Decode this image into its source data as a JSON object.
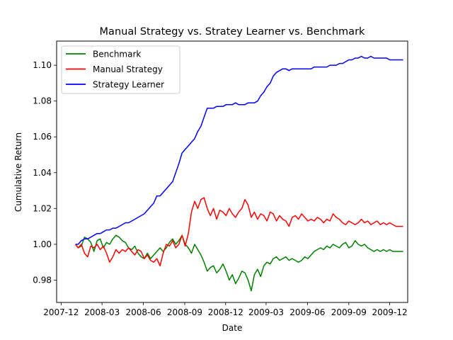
{
  "chart_data": {
    "type": "line",
    "title": "Manual Strategy vs. Stratey Learner vs. Benchmark",
    "xlabel": "Date",
    "ylabel": "Cumulative Return",
    "xlim": [
      "2007-11-21",
      "2010-01-10"
    ],
    "ylim": [
      0.9675,
      1.1135
    ],
    "x_ticks": [
      "2007-12",
      "2008-03",
      "2008-06",
      "2008-09",
      "2008-12",
      "2009-03",
      "2009-06",
      "2009-09",
      "2009-12"
    ],
    "x_tick_dates": [
      "2007-12-01",
      "2008-03-01",
      "2008-06-01",
      "2008-09-01",
      "2008-12-01",
      "2009-03-01",
      "2009-06-01",
      "2009-09-01",
      "2009-12-01"
    ],
    "y_ticks": [
      "0.98",
      "1.00",
      "1.02",
      "1.04",
      "1.06",
      "1.08",
      "1.10"
    ],
    "y_tick_values": [
      0.98,
      1.0,
      1.02,
      1.04,
      1.06,
      1.08,
      1.1
    ],
    "grid": false,
    "legend_position": "top-left",
    "series": [
      {
        "name": "Benchmark",
        "color": "#008000",
        "x": [
          "2008-01-02",
          "2008-01-08",
          "2008-01-15",
          "2008-01-22",
          "2008-01-29",
          "2008-02-05",
          "2008-02-12",
          "2008-02-19",
          "2008-02-26",
          "2008-03-04",
          "2008-03-11",
          "2008-03-18",
          "2008-03-25",
          "2008-04-01",
          "2008-04-08",
          "2008-04-15",
          "2008-04-22",
          "2008-04-29",
          "2008-05-06",
          "2008-05-13",
          "2008-05-20",
          "2008-05-27",
          "2008-06-03",
          "2008-06-10",
          "2008-06-17",
          "2008-06-24",
          "2008-07-01",
          "2008-07-08",
          "2008-07-15",
          "2008-07-22",
          "2008-07-29",
          "2008-08-05",
          "2008-08-12",
          "2008-08-19",
          "2008-08-26",
          "2008-09-02",
          "2008-09-09",
          "2008-09-16",
          "2008-09-23",
          "2008-09-30",
          "2008-10-07",
          "2008-10-14",
          "2008-10-21",
          "2008-10-28",
          "2008-11-04",
          "2008-11-11",
          "2008-11-18",
          "2008-11-25",
          "2008-12-02",
          "2008-12-09",
          "2008-12-16",
          "2008-12-23",
          "2008-12-30",
          "2009-01-06",
          "2009-01-13",
          "2009-01-20",
          "2009-01-27",
          "2009-02-03",
          "2009-02-10",
          "2009-02-17",
          "2009-02-24",
          "2009-03-03",
          "2009-03-10",
          "2009-03-17",
          "2009-03-24",
          "2009-03-31",
          "2009-04-07",
          "2009-04-14",
          "2009-04-21",
          "2009-04-28",
          "2009-05-05",
          "2009-05-12",
          "2009-05-19",
          "2009-05-26",
          "2009-06-02",
          "2009-06-09",
          "2009-06-16",
          "2009-06-23",
          "2009-06-30",
          "2009-07-07",
          "2009-07-14",
          "2009-07-21",
          "2009-07-28",
          "2009-08-04",
          "2009-08-11",
          "2009-08-18",
          "2009-08-25",
          "2009-09-01",
          "2009-09-08",
          "2009-09-15",
          "2009-09-22",
          "2009-09-29",
          "2009-10-06",
          "2009-10-13",
          "2009-10-20",
          "2009-10-27",
          "2009-11-03",
          "2009-11-10",
          "2009-11-17",
          "2009-11-24",
          "2009-12-01",
          "2009-12-08",
          "2009-12-15",
          "2009-12-22",
          "2009-12-31"
        ],
        "y": [
          1.0,
          0.998,
          0.999,
          1.004,
          1.003,
          1.001,
          0.996,
          1.002,
          1.003,
          0.998,
          1.001,
          1.0,
          1.003,
          1.005,
          1.004,
          1.002,
          1.001,
          0.998,
          0.997,
          0.999,
          0.995,
          0.993,
          0.992,
          0.995,
          0.992,
          0.994,
          0.996,
          0.998,
          0.996,
          0.998,
          1.001,
          1.003,
          1.0,
          1.002,
          1.005,
          1.0,
          0.998,
          0.995,
          1.0,
          0.997,
          0.994,
          0.99,
          0.985,
          0.987,
          0.988,
          0.984,
          0.986,
          0.989,
          0.985,
          0.98,
          0.983,
          0.978,
          0.981,
          0.985,
          0.984,
          0.98,
          0.974,
          0.983,
          0.986,
          0.982,
          0.988,
          0.99,
          0.989,
          0.992,
          0.993,
          0.991,
          0.992,
          0.993,
          0.991,
          0.992,
          0.991,
          0.99,
          0.991,
          0.993,
          0.992,
          0.994,
          0.996,
          0.997,
          0.998,
          0.997,
          0.999,
          0.998,
          1.0,
          0.999,
          0.998,
          1.0,
          1.001,
          0.998,
          0.999,
          1.002,
          1.0,
          0.999,
          1.0,
          0.998,
          0.997,
          0.996,
          0.997,
          0.996,
          0.997,
          0.996,
          0.997,
          0.996,
          0.996,
          0.996,
          0.996
        ]
      },
      {
        "name": "Manual Strategy",
        "color": "#ff0000",
        "x": [
          "2008-01-02",
          "2008-01-08",
          "2008-01-15",
          "2008-01-22",
          "2008-01-29",
          "2008-02-05",
          "2008-02-12",
          "2008-02-19",
          "2008-02-26",
          "2008-03-04",
          "2008-03-11",
          "2008-03-18",
          "2008-03-25",
          "2008-04-01",
          "2008-04-08",
          "2008-04-15",
          "2008-04-22",
          "2008-04-29",
          "2008-05-06",
          "2008-05-13",
          "2008-05-20",
          "2008-05-27",
          "2008-06-03",
          "2008-06-10",
          "2008-06-17",
          "2008-06-24",
          "2008-07-01",
          "2008-07-08",
          "2008-07-15",
          "2008-07-22",
          "2008-07-29",
          "2008-08-05",
          "2008-08-12",
          "2008-08-19",
          "2008-08-26",
          "2008-09-02",
          "2008-09-09",
          "2008-09-16",
          "2008-09-23",
          "2008-09-30",
          "2008-10-07",
          "2008-10-14",
          "2008-10-21",
          "2008-10-28",
          "2008-11-04",
          "2008-11-11",
          "2008-11-18",
          "2008-11-25",
          "2008-12-02",
          "2008-12-09",
          "2008-12-16",
          "2008-12-23",
          "2008-12-30",
          "2009-01-06",
          "2009-01-13",
          "2009-01-20",
          "2009-01-27",
          "2009-02-03",
          "2009-02-10",
          "2009-02-17",
          "2009-02-24",
          "2009-03-03",
          "2009-03-10",
          "2009-03-17",
          "2009-03-24",
          "2009-03-31",
          "2009-04-07",
          "2009-04-14",
          "2009-04-21",
          "2009-04-28",
          "2009-05-05",
          "2009-05-12",
          "2009-05-19",
          "2009-05-26",
          "2009-06-02",
          "2009-06-09",
          "2009-06-16",
          "2009-06-23",
          "2009-06-30",
          "2009-07-07",
          "2009-07-14",
          "2009-07-21",
          "2009-07-28",
          "2009-08-04",
          "2009-08-11",
          "2009-08-18",
          "2009-08-25",
          "2009-09-01",
          "2009-09-08",
          "2009-09-15",
          "2009-09-22",
          "2009-09-29",
          "2009-10-06",
          "2009-10-13",
          "2009-10-20",
          "2009-10-27",
          "2009-11-03",
          "2009-11-10",
          "2009-11-17",
          "2009-11-24",
          "2009-12-01",
          "2009-12-08",
          "2009-12-15",
          "2009-12-22",
          "2009-12-31"
        ],
        "y": [
          1.0,
          0.998,
          1.0,
          0.995,
          0.993,
          0.999,
          0.998,
          1.0,
          0.997,
          0.999,
          0.995,
          0.99,
          0.993,
          0.997,
          0.995,
          0.997,
          0.996,
          0.998,
          0.996,
          0.994,
          0.997,
          0.996,
          0.992,
          0.994,
          0.991,
          0.99,
          0.992,
          0.988,
          0.995,
          1.0,
          0.999,
          1.002,
          0.998,
          1.0,
          1.005,
          0.999,
          1.006,
          1.018,
          1.024,
          1.02,
          1.025,
          1.026,
          1.02,
          1.016,
          1.02,
          1.014,
          1.019,
          1.018,
          1.016,
          1.02,
          1.017,
          1.015,
          1.018,
          1.02,
          1.025,
          1.022,
          1.015,
          1.018,
          1.014,
          1.017,
          1.016,
          1.013,
          1.018,
          1.017,
          1.013,
          1.016,
          1.014,
          1.013,
          1.01,
          1.015,
          1.016,
          1.014,
          1.017,
          1.015,
          1.013,
          1.014,
          1.013,
          1.015,
          1.014,
          1.012,
          1.014,
          1.013,
          1.017,
          1.015,
          1.014,
          1.012,
          1.011,
          1.013,
          1.012,
          1.011,
          1.012,
          1.014,
          1.012,
          1.013,
          1.011,
          1.012,
          1.013,
          1.011,
          1.012,
          1.011,
          1.012,
          1.011,
          1.01,
          1.01,
          1.01
        ]
      },
      {
        "name": "Strategy Learner",
        "color": "#0000ff",
        "x": [
          "2008-01-02",
          "2008-01-08",
          "2008-01-15",
          "2008-01-22",
          "2008-01-29",
          "2008-02-05",
          "2008-02-12",
          "2008-02-19",
          "2008-02-26",
          "2008-03-04",
          "2008-03-11",
          "2008-03-18",
          "2008-03-25",
          "2008-04-01",
          "2008-04-08",
          "2008-04-15",
          "2008-04-22",
          "2008-04-29",
          "2008-05-06",
          "2008-05-13",
          "2008-05-20",
          "2008-05-27",
          "2008-06-03",
          "2008-06-10",
          "2008-06-17",
          "2008-06-24",
          "2008-07-01",
          "2008-07-08",
          "2008-07-15",
          "2008-07-22",
          "2008-07-29",
          "2008-08-05",
          "2008-08-12",
          "2008-08-19",
          "2008-08-26",
          "2008-09-02",
          "2008-09-09",
          "2008-09-16",
          "2008-09-23",
          "2008-09-30",
          "2008-10-07",
          "2008-10-14",
          "2008-10-21",
          "2008-10-28",
          "2008-11-04",
          "2008-11-11",
          "2008-11-18",
          "2008-11-25",
          "2008-12-02",
          "2008-12-09",
          "2008-12-16",
          "2008-12-23",
          "2008-12-30",
          "2009-01-06",
          "2009-01-13",
          "2009-01-20",
          "2009-01-27",
          "2009-02-03",
          "2009-02-10",
          "2009-02-17",
          "2009-02-24",
          "2009-03-03",
          "2009-03-10",
          "2009-03-17",
          "2009-03-24",
          "2009-03-31",
          "2009-04-07",
          "2009-04-14",
          "2009-04-21",
          "2009-04-28",
          "2009-05-05",
          "2009-05-12",
          "2009-05-19",
          "2009-05-26",
          "2009-06-02",
          "2009-06-09",
          "2009-06-16",
          "2009-06-23",
          "2009-06-30",
          "2009-07-07",
          "2009-07-14",
          "2009-07-21",
          "2009-07-28",
          "2009-08-04",
          "2009-08-11",
          "2009-08-18",
          "2009-08-25",
          "2009-09-01",
          "2009-09-08",
          "2009-09-15",
          "2009-09-22",
          "2009-09-29",
          "2009-10-06",
          "2009-10-13",
          "2009-10-20",
          "2009-10-27",
          "2009-11-03",
          "2009-11-10",
          "2009-11-17",
          "2009-11-24",
          "2009-12-01",
          "2009-12-08",
          "2009-12-15",
          "2009-12-22",
          "2009-12-31"
        ],
        "y": [
          1.0,
          1.0,
          1.002,
          1.003,
          1.003,
          1.004,
          1.005,
          1.006,
          1.006,
          1.007,
          1.008,
          1.008,
          1.009,
          1.009,
          1.01,
          1.011,
          1.012,
          1.012,
          1.013,
          1.014,
          1.015,
          1.016,
          1.017,
          1.019,
          1.021,
          1.023,
          1.027,
          1.027,
          1.029,
          1.031,
          1.033,
          1.035,
          1.04,
          1.045,
          1.051,
          1.053,
          1.055,
          1.057,
          1.059,
          1.063,
          1.066,
          1.071,
          1.076,
          1.076,
          1.076,
          1.077,
          1.077,
          1.077,
          1.078,
          1.078,
          1.078,
          1.079,
          1.078,
          1.078,
          1.078,
          1.079,
          1.079,
          1.079,
          1.08,
          1.083,
          1.085,
          1.088,
          1.09,
          1.094,
          1.096,
          1.097,
          1.098,
          1.098,
          1.097,
          1.098,
          1.098,
          1.098,
          1.098,
          1.098,
          1.098,
          1.098,
          1.099,
          1.099,
          1.099,
          1.099,
          1.099,
          1.1,
          1.1,
          1.1,
          1.101,
          1.101,
          1.102,
          1.103,
          1.103,
          1.104,
          1.104,
          1.105,
          1.104,
          1.104,
          1.105,
          1.104,
          1.104,
          1.104,
          1.104,
          1.104,
          1.103,
          1.103,
          1.103,
          1.103,
          1.103
        ]
      }
    ]
  }
}
